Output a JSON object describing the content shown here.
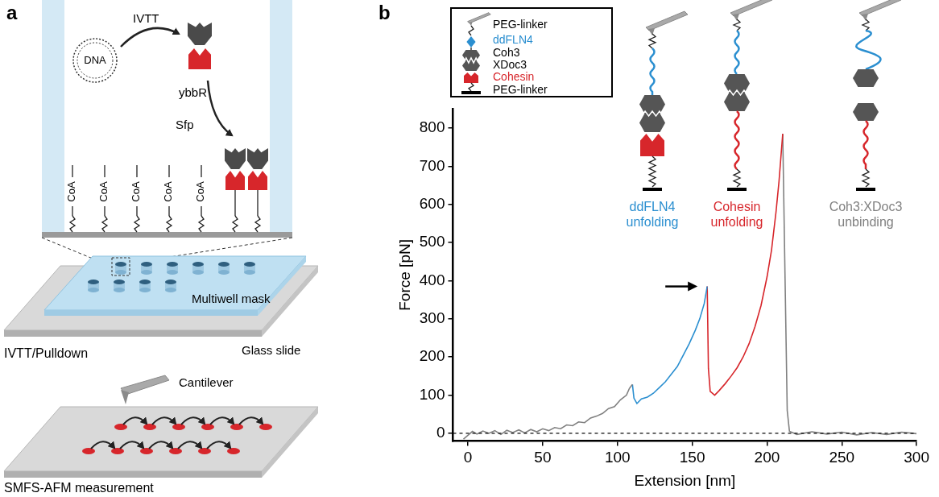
{
  "panel_a": {
    "letter": "a",
    "dna": "DNA",
    "ivtt": "IVTT",
    "ybbr": "ybbR",
    "sfp": "Sfp",
    "coa_labels": [
      "CoA",
      "CoA",
      "CoA",
      "CoA",
      "CoA"
    ],
    "multiwell_mask": "Multiwell mask",
    "glass_slide": "Glass slide",
    "step1": "IVTT/Pulldown",
    "cantilever": "Cantilever",
    "step2": "SMFS-AFM measurement"
  },
  "panel_b": {
    "letter": "b",
    "inset": [
      {
        "text": "PEG-linker",
        "color": "#000000"
      },
      {
        "text": "ddFLN4",
        "color": "#2b8fd0"
      },
      {
        "text": "Coh3",
        "color": "#000000"
      },
      {
        "text": "XDoc3",
        "color": "#000000"
      },
      {
        "text": "Cohesin",
        "color": "#d7262b"
      },
      {
        "text": "PEG-linker",
        "color": "#000000"
      }
    ],
    "events": [
      {
        "text": "ddFLN4 unfolding",
        "color": "#2b8fd0"
      },
      {
        "text": "Cohesin unfolding",
        "color": "#d7262b"
      },
      {
        "text": "Coh3:XDoc3 unbinding",
        "color": "#808080"
      }
    ]
  },
  "chart_data": {
    "type": "line",
    "x_label": "Extension [nm]",
    "y_label": "Force [pN]",
    "xlim": [
      -10,
      300
    ],
    "ylim": [
      -20,
      850
    ],
    "xticks": [
      0,
      50,
      100,
      150,
      200,
      250,
      300
    ],
    "yticks": [
      0,
      100,
      200,
      300,
      400,
      500,
      600,
      700,
      800
    ],
    "grid": false,
    "series": [
      {
        "color": "#808080",
        "x": [
          -3,
          0,
          3,
          6,
          10,
          14,
          18,
          22,
          26,
          30,
          34,
          38,
          42,
          46,
          50,
          54,
          58,
          62,
          66,
          70,
          74,
          78,
          82,
          86,
          90,
          94,
          98,
          102,
          106,
          108,
          110
        ],
        "values": [
          -15,
          -5,
          5,
          -2,
          6,
          0,
          7,
          -3,
          8,
          2,
          9,
          1,
          10,
          4,
          12,
          7,
          15,
          12,
          22,
          20,
          30,
          28,
          40,
          45,
          52,
          65,
          70,
          88,
          100,
          118,
          128
        ]
      },
      {
        "color": "#2b8fd0",
        "x": [
          110,
          111,
          113,
          116,
          120,
          124,
          128,
          132,
          136,
          140,
          144,
          148,
          152,
          155,
          158,
          160
        ],
        "values": [
          128,
          92,
          78,
          90,
          95,
          105,
          120,
          135,
          155,
          175,
          205,
          235,
          270,
          300,
          340,
          385
        ]
      },
      {
        "color": "#d7262b",
        "x": [
          160,
          160.8,
          162,
          165,
          168,
          172,
          176,
          180,
          184,
          188,
          192,
          196,
          200,
          203,
          206,
          208,
          210.5
        ],
        "values": [
          385,
          170,
          110,
          100,
          112,
          130,
          150,
          172,
          200,
          235,
          280,
          335,
          410,
          480,
          580,
          660,
          785
        ]
      },
      {
        "color": "#808080",
        "x": [
          210.5,
          212,
          213.5,
          215,
          220,
          230,
          240,
          250,
          260,
          270,
          280,
          290,
          300
        ],
        "values": [
          785,
          420,
          60,
          5,
          -3,
          4,
          -2,
          3,
          -4,
          2,
          -3,
          3,
          -1
        ]
      }
    ],
    "hlines": [
      {
        "value": 0,
        "line_style": "dashed",
        "color": "#000000"
      }
    ]
  }
}
